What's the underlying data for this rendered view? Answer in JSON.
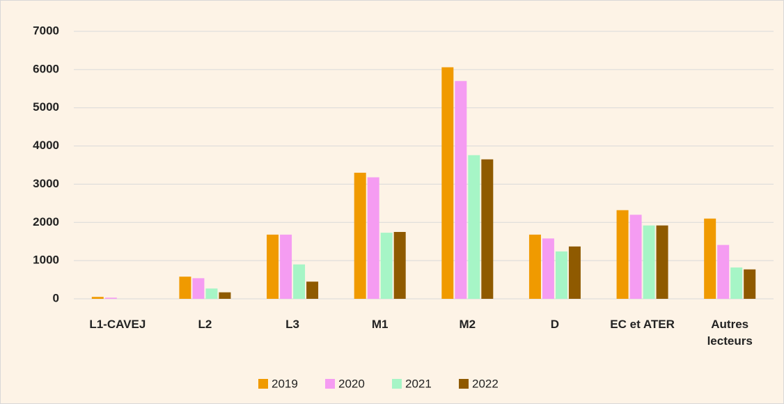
{
  "chart_data": {
    "type": "bar",
    "categories": [
      "L1-CAVEJ",
      "L2",
      "L3",
      "M1",
      "M2",
      "D",
      "EC et ATER",
      "Autres lecteurs"
    ],
    "series": [
      {
        "name": "2019",
        "color": "#f09a00",
        "values": [
          50,
          580,
          1680,
          3300,
          6060,
          1680,
          2320,
          2100
        ]
      },
      {
        "name": "2020",
        "color": "#f59cf2",
        "values": [
          30,
          540,
          1680,
          3180,
          5700,
          1580,
          2200,
          1410
        ]
      },
      {
        "name": "2021",
        "color": "#a6f5c6",
        "values": [
          0,
          270,
          900,
          1730,
          3760,
          1240,
          1920,
          820
        ]
      },
      {
        "name": "2022",
        "color": "#8f5a00",
        "values": [
          0,
          170,
          450,
          1750,
          3650,
          1370,
          1920,
          770
        ]
      }
    ],
    "ylim": [
      0,
      7000
    ],
    "yticks": [
      0,
      1000,
      2000,
      3000,
      4000,
      5000,
      6000,
      7000
    ],
    "grid": true,
    "legend": "bottom"
  }
}
